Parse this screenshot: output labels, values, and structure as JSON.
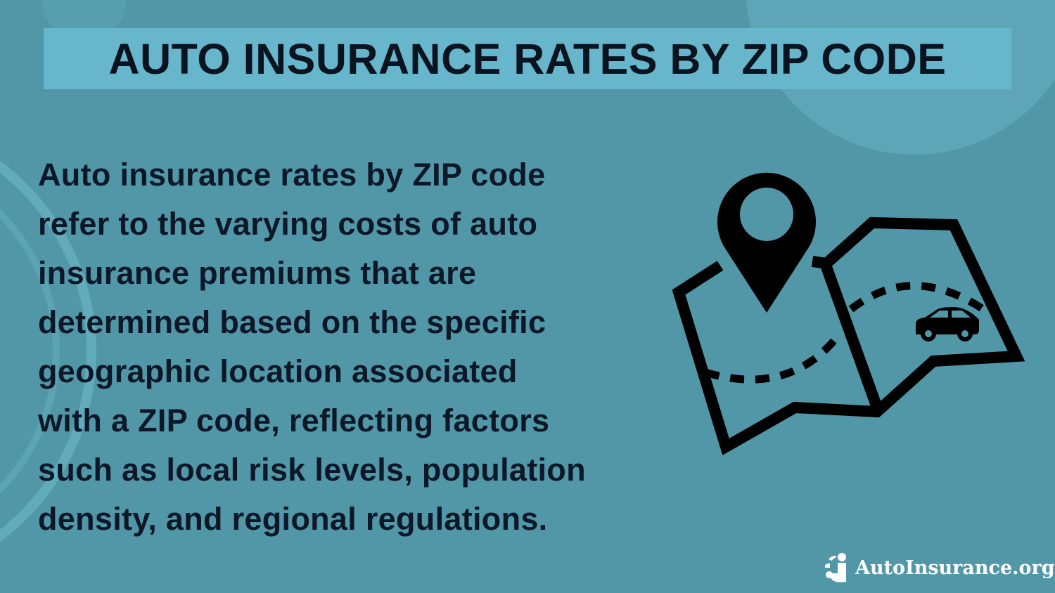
{
  "colors": {
    "background": "#5197a7",
    "title_box": "#68b6cb",
    "text": "#0c1828",
    "logo": "#ffffff"
  },
  "title": "AUTO INSURANCE RATES BY ZIP CODE",
  "body_lines": [
    "Auto insurance rates by ZIP code",
    "refer to the varying costs of auto",
    "insurance premiums that are",
    "determined based on the specific",
    "geographic location associated",
    "with a ZIP code, reflecting factors",
    "such as local risk levels, population",
    "density, and regional regulations."
  ],
  "illustration": {
    "icons": [
      "map-icon",
      "location-pin-icon",
      "car-icon"
    ]
  },
  "logo": {
    "text": "AutoInsurance.org",
    "icon": "ai-logo-icon"
  }
}
